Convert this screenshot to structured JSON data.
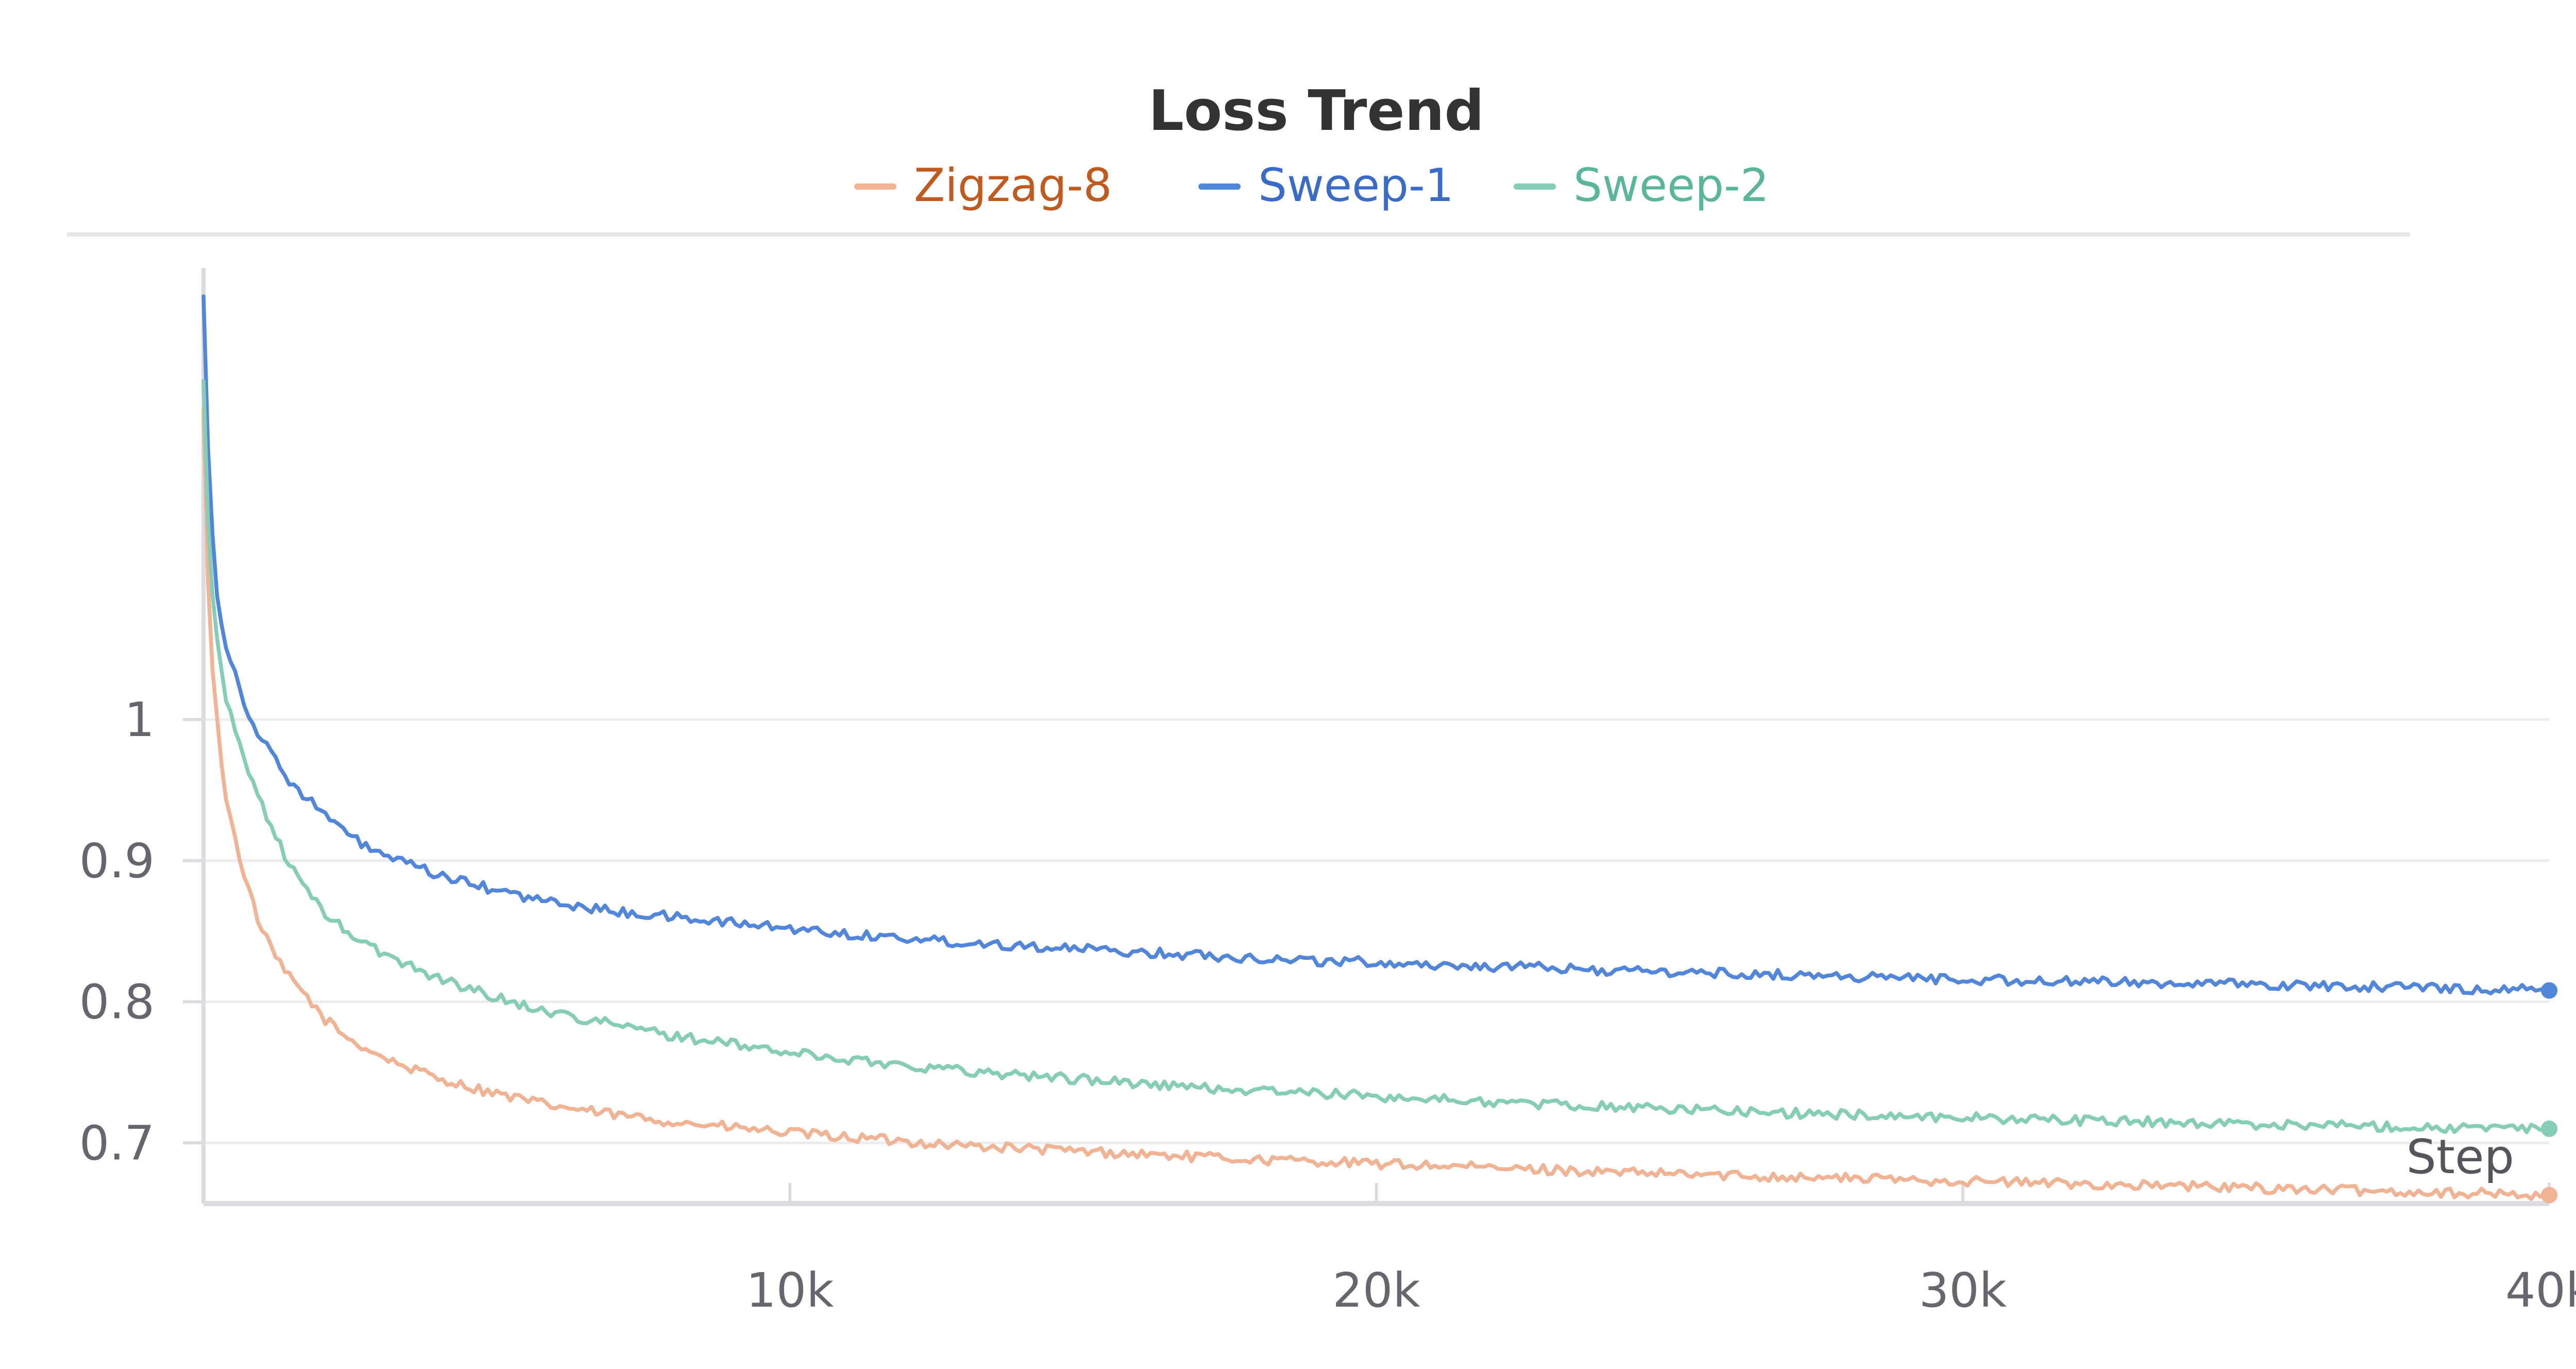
{
  "chart_data": {
    "type": "line",
    "title": "Loss Trend",
    "xlabel": "Step",
    "ylabel": "",
    "xlim": [
      0,
      40000
    ],
    "ylim": [
      0.657,
      1.32
    ],
    "x_ticks": [
      10000,
      20000,
      30000,
      40000
    ],
    "x_tick_labels": [
      "10k",
      "20k",
      "30k",
      "40k"
    ],
    "y_ticks": [
      0.7,
      0.8,
      0.9,
      1
    ],
    "y_tick_labels": [
      "0.7",
      "0.8",
      "0.9",
      "1"
    ],
    "grid": true,
    "legend_position": "top-center",
    "series": [
      {
        "name": "Zigzag-8",
        "color": "#f0b393",
        "label_color": "#c05a1e",
        "x": [
          0,
          100,
          250,
          400,
          600,
          800,
          1000,
          1250,
          1500,
          1750,
          2000,
          2500,
          3000,
          3500,
          4000,
          4500,
          5000,
          5500,
          6000,
          7000,
          8000,
          9000,
          10000,
          11000,
          12000,
          13000,
          14000,
          15000,
          16000,
          17000,
          18000,
          19000,
          20000,
          21000,
          22000,
          23000,
          24000,
          25000,
          26000,
          27000,
          28000,
          29000,
          30000,
          31000,
          32000,
          33000,
          34000,
          35000,
          36000,
          37000,
          38000,
          39000,
          40000
        ],
        "values": [
          1.22,
          1.06,
          0.99,
          0.94,
          0.905,
          0.875,
          0.85,
          0.83,
          0.815,
          0.805,
          0.79,
          0.773,
          0.762,
          0.753,
          0.746,
          0.74,
          0.735,
          0.73,
          0.726,
          0.72,
          0.715,
          0.711,
          0.707,
          0.704,
          0.701,
          0.698,
          0.696,
          0.694,
          0.692,
          0.69,
          0.688,
          0.687,
          0.685,
          0.684,
          0.682,
          0.681,
          0.679,
          0.678,
          0.677,
          0.676,
          0.675,
          0.674,
          0.673,
          0.672,
          0.671,
          0.67,
          0.669,
          0.668,
          0.667,
          0.666,
          0.665,
          0.664,
          0.663
        ],
        "noise": 0.0035,
        "end_marker": true
      },
      {
        "name": "Sweep-1",
        "color": "#5286db",
        "label_color": "#3a6bc8",
        "x": [
          0,
          100,
          250,
          400,
          600,
          800,
          1000,
          1250,
          1500,
          1750,
          2000,
          2500,
          3000,
          3500,
          4000,
          4500,
          5000,
          5500,
          6000,
          7000,
          8000,
          9000,
          10000,
          11000,
          12000,
          13000,
          14000,
          15000,
          16000,
          17000,
          18000,
          19000,
          20000,
          21000,
          22000,
          23000,
          24000,
          25000,
          26000,
          27000,
          28000,
          29000,
          30000,
          31000,
          32000,
          33000,
          34000,
          35000,
          36000,
          37000,
          38000,
          39000,
          40000
        ],
        "values": [
          1.3,
          1.16,
          1.08,
          1.05,
          1.025,
          1.0,
          0.985,
          0.97,
          0.955,
          0.945,
          0.935,
          0.917,
          0.905,
          0.897,
          0.89,
          0.884,
          0.879,
          0.874,
          0.87,
          0.864,
          0.86,
          0.856,
          0.852,
          0.848,
          0.845,
          0.842,
          0.84,
          0.837,
          0.835,
          0.833,
          0.831,
          0.829,
          0.828,
          0.826,
          0.825,
          0.824,
          0.822,
          0.821,
          0.82,
          0.819,
          0.818,
          0.817,
          0.816,
          0.815,
          0.814,
          0.814,
          0.813,
          0.812,
          0.811,
          0.811,
          0.81,
          0.809,
          0.808
        ],
        "noise": 0.0035,
        "end_marker": true
      },
      {
        "name": "Sweep-2",
        "color": "#86cdb7",
        "label_color": "#5ab69a",
        "x": [
          0,
          100,
          250,
          400,
          600,
          800,
          1000,
          1250,
          1500,
          1750,
          2000,
          2500,
          3000,
          3500,
          4000,
          4500,
          5000,
          5500,
          6000,
          7000,
          8000,
          9000,
          10000,
          11000,
          12000,
          13000,
          14000,
          15000,
          16000,
          17000,
          18000,
          19000,
          20000,
          21000,
          22000,
          23000,
          24000,
          25000,
          26000,
          27000,
          28000,
          29000,
          30000,
          31000,
          32000,
          33000,
          34000,
          35000,
          36000,
          37000,
          38000,
          39000,
          40000
        ],
        "values": [
          1.24,
          1.11,
          1.05,
          1.01,
          0.985,
          0.96,
          0.94,
          0.915,
          0.895,
          0.88,
          0.865,
          0.848,
          0.835,
          0.826,
          0.817,
          0.81,
          0.803,
          0.797,
          0.792,
          0.784,
          0.776,
          0.77,
          0.764,
          0.759,
          0.755,
          0.751,
          0.748,
          0.745,
          0.742,
          0.739,
          0.737,
          0.735,
          0.733,
          0.731,
          0.729,
          0.727,
          0.726,
          0.724,
          0.723,
          0.721,
          0.72,
          0.719,
          0.718,
          0.717,
          0.716,
          0.715,
          0.714,
          0.713,
          0.713,
          0.712,
          0.711,
          0.71,
          0.71
        ],
        "noise": 0.0035,
        "end_marker": true
      }
    ]
  }
}
